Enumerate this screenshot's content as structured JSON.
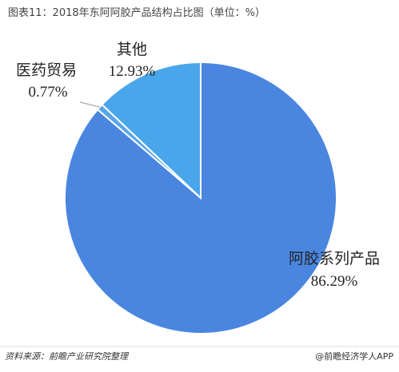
{
  "chart_data": {
    "type": "pie",
    "title": "图表11：2018年东阿阿胶产品结构占比图（单位：%）",
    "categories": [
      "阿胶系列产品",
      "医药贸易",
      "其他"
    ],
    "values": [
      86.29,
      0.77,
      12.93
    ],
    "value_labels": [
      "86.29%",
      "0.77%",
      "12.93%"
    ],
    "colors": [
      "#4a86e0",
      "#5aa5ea",
      "#4aa6ea"
    ],
    "source": "资料来源：前瞻产业研究院整理",
    "credit": "@前瞻经济学人APP"
  }
}
